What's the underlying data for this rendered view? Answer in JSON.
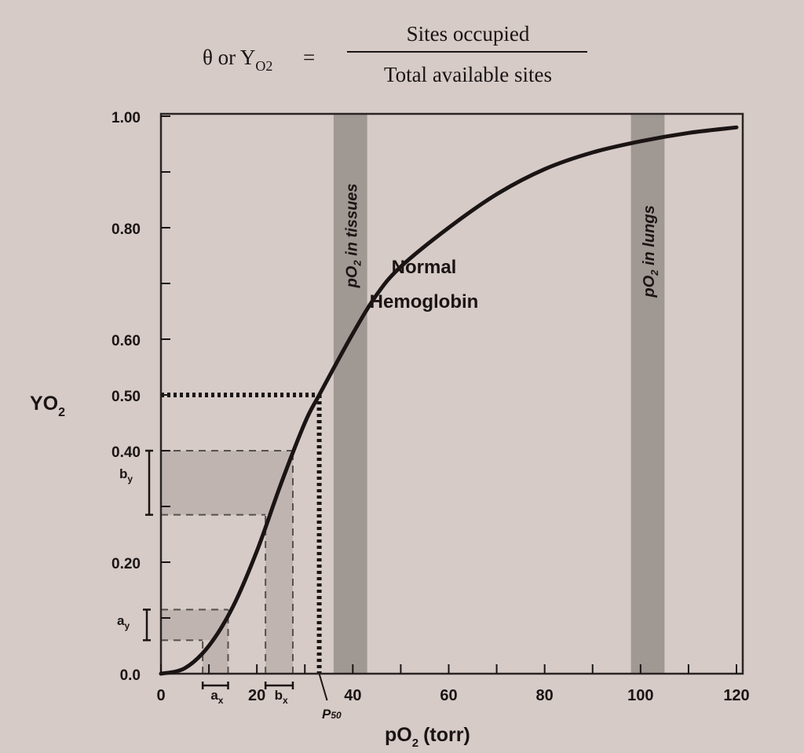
{
  "header": {
    "lhs": "θ or Y",
    "lhs_sub": "O2",
    "equals": "=",
    "numerator": "Sites occupied",
    "denominator": "Total available sites"
  },
  "chart_data": {
    "type": "line",
    "xlabel": "pO",
    "xlabel_sub": "2",
    "xlabel_unit": "(torr)",
    "ylabel": "YO",
    "ylabel_sub": "2",
    "xlim": [
      0,
      120
    ],
    "ylim": [
      0,
      1.0
    ],
    "x_ticks": [
      0,
      20,
      40,
      60,
      80,
      100,
      120
    ],
    "x_tick_labels": [
      "0",
      "20",
      "40",
      "60",
      "80",
      "100",
      "120"
    ],
    "y_ticks": [
      0,
      0.2,
      0.4,
      0.5,
      0.6,
      0.8,
      1.0
    ],
    "y_tick_labels": [
      "0.0",
      "0.20",
      "0.40",
      "0.50",
      "0.60",
      "0.80",
      "1.00"
    ],
    "grid": false,
    "series": [
      {
        "name": "Normal Hemoglobin",
        "x": [
          0,
          5,
          10,
          15,
          20,
          25,
          30,
          33,
          40,
          45,
          50,
          60,
          70,
          80,
          90,
          100,
          110,
          120
        ],
        "y": [
          0,
          0.01,
          0.05,
          0.12,
          0.22,
          0.34,
          0.45,
          0.5,
          0.61,
          0.68,
          0.73,
          0.8,
          0.86,
          0.905,
          0.935,
          0.955,
          0.97,
          0.98
        ],
        "color": "#1a1414"
      }
    ],
    "curve_label": [
      "Normal",
      "Hemoglobin"
    ],
    "bands": [
      {
        "label": "pO",
        "label_sub": "2",
        "label_rest": " in tissues",
        "x_range": [
          36,
          43
        ]
      },
      {
        "label": "pO",
        "label_sub": "2",
        "label_rest": " in lungs",
        "x_range": [
          98,
          105
        ]
      }
    ],
    "p50": {
      "label": "P",
      "label_sub": "50",
      "x": 33,
      "y": 0.5
    },
    "intervals": [
      {
        "x_label": "a",
        "x_sub": "x",
        "y_label": "a",
        "y_sub": "y",
        "x_range": [
          8.7,
          14
        ],
        "y_range": [
          0.06,
          0.115
        ]
      },
      {
        "x_label": "b",
        "x_sub": "x",
        "y_label": "b",
        "y_sub": "y",
        "x_range": [
          21.8,
          27.5
        ],
        "y_range": [
          0.285,
          0.4
        ]
      }
    ],
    "colors": {
      "paper": "#d6cbc7",
      "band": "#a09893",
      "shade": "#bfb4b0",
      "ink": "#1a1414"
    }
  }
}
